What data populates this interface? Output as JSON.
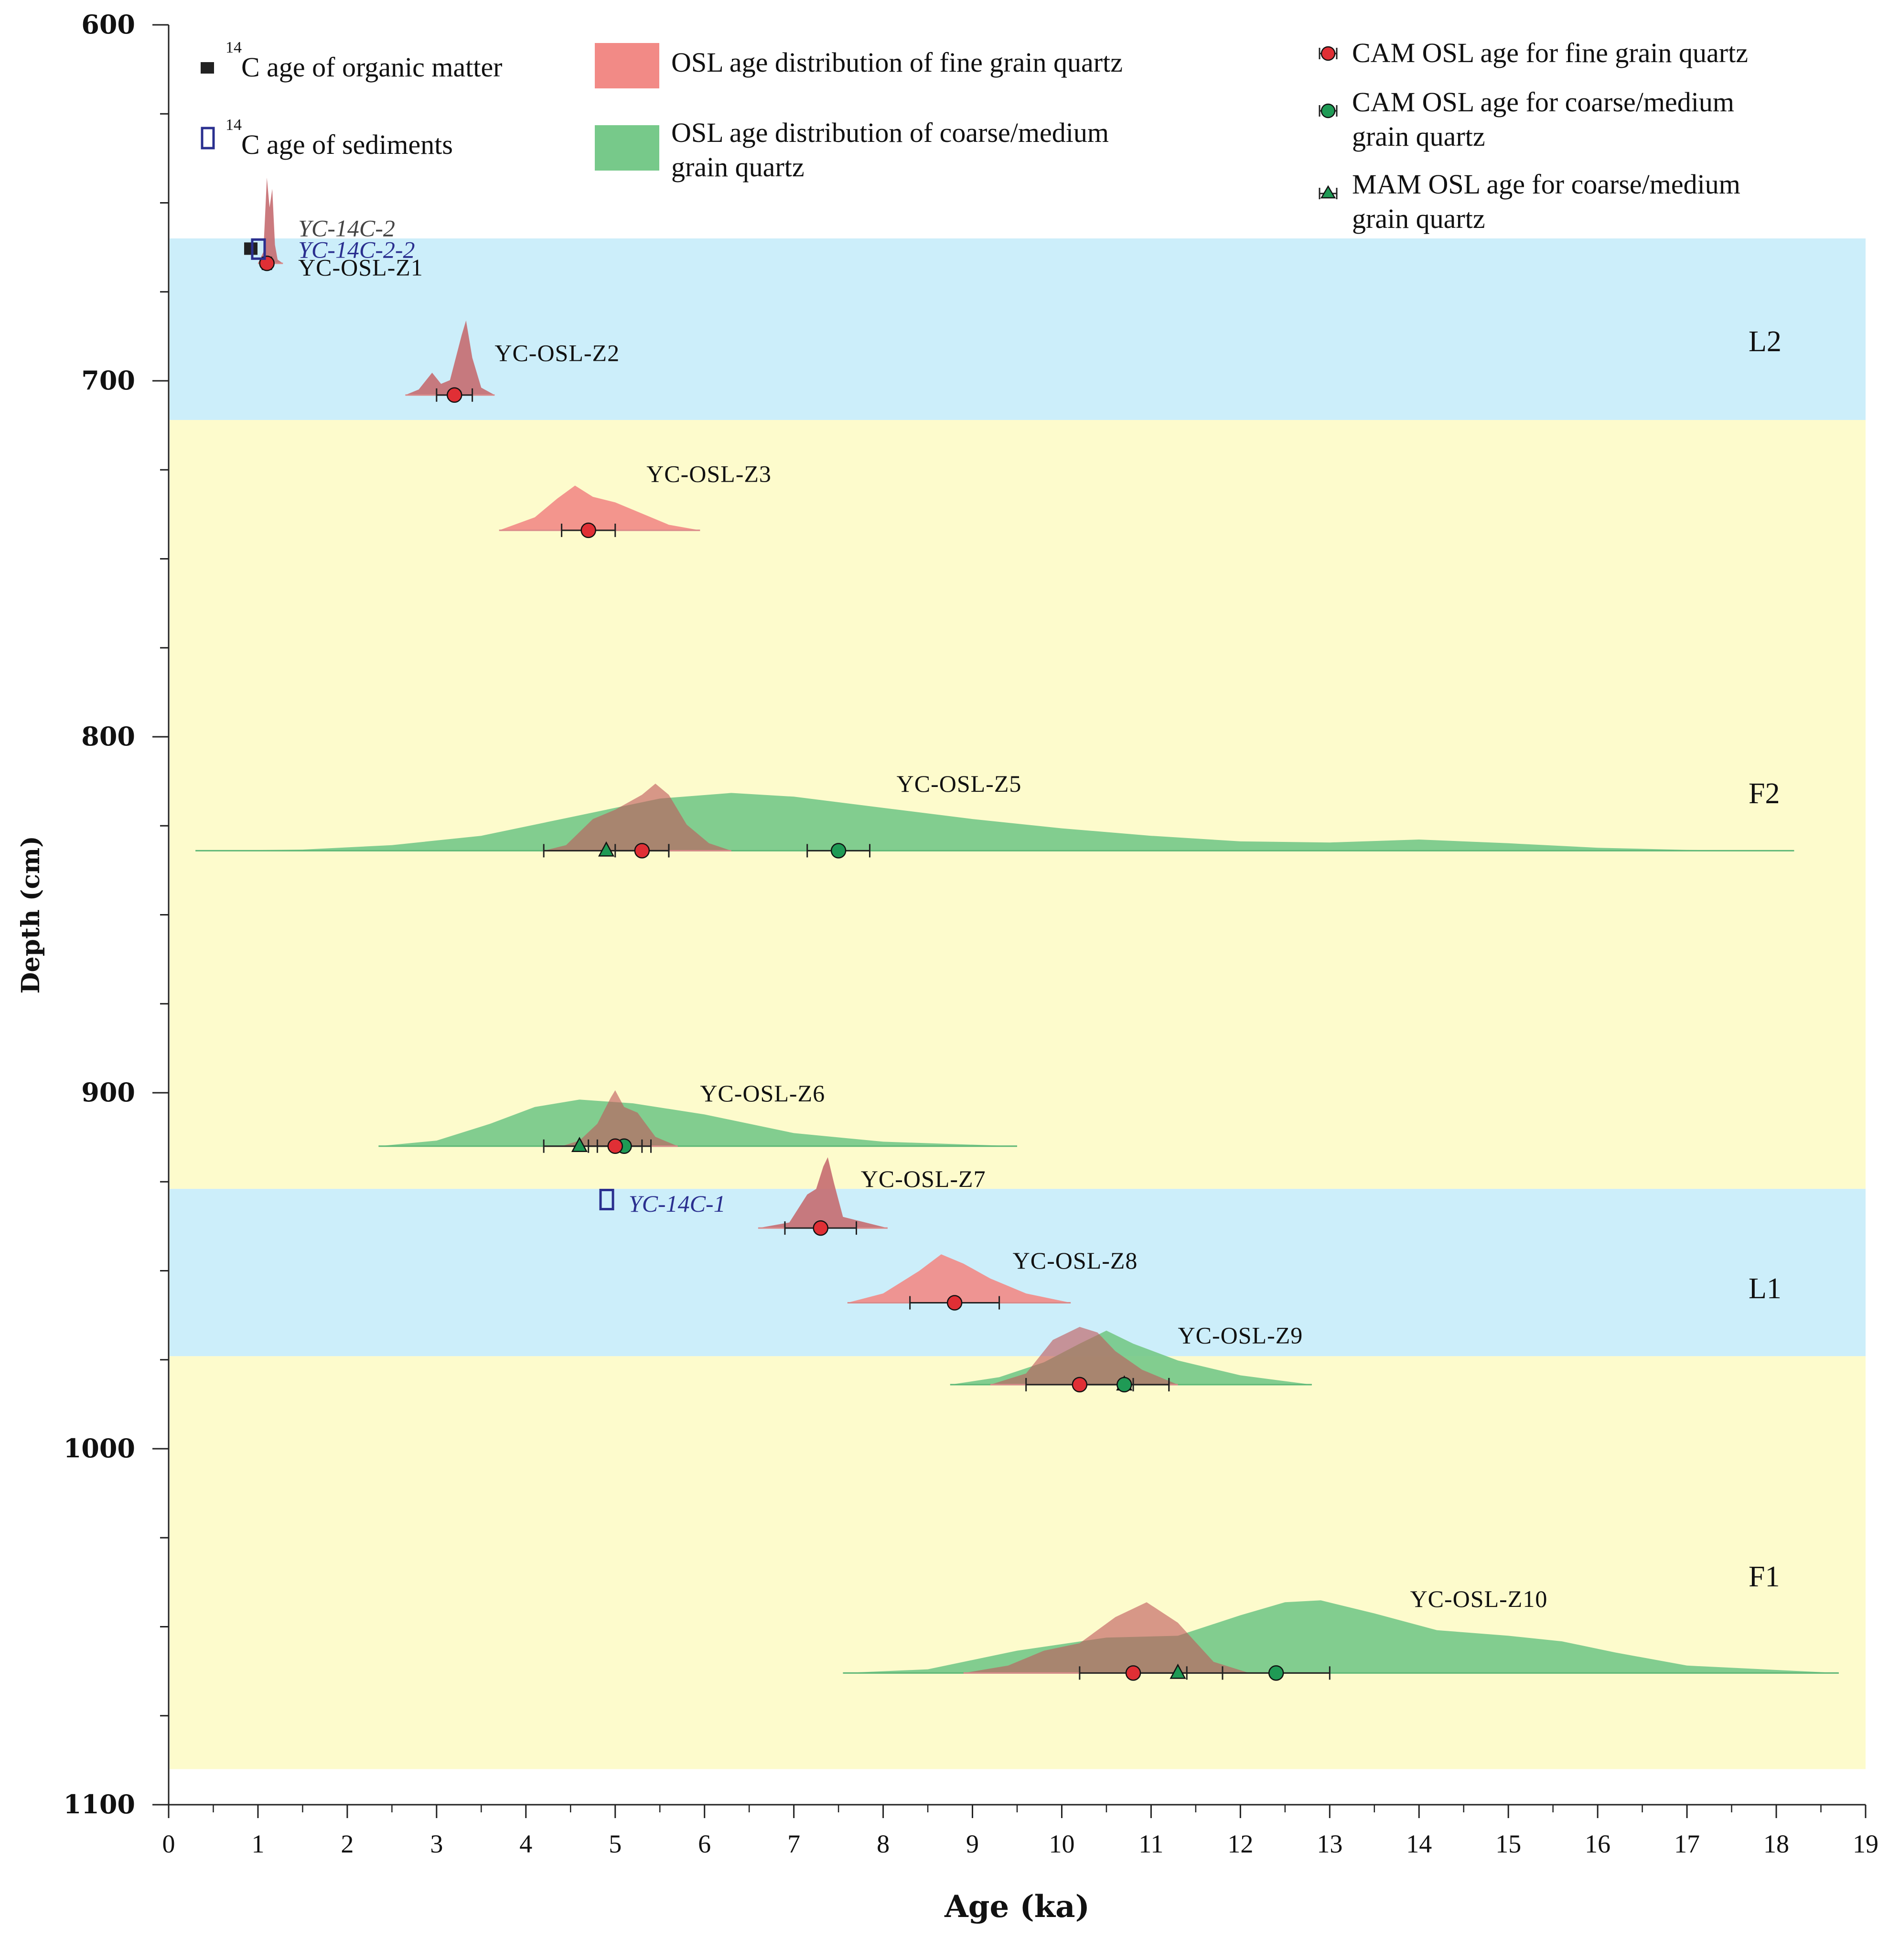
{
  "chart_data": {
    "type": "scatter",
    "title": "",
    "xlabel": "Age (ka)",
    "ylabel": "Depth (cm)",
    "xlim": [
      0,
      19
    ],
    "ylim": [
      1100,
      600
    ],
    "x_ticks": [
      "0",
      "1",
      "2",
      "3",
      "4",
      "5",
      "6",
      "7",
      "8",
      "9",
      "10",
      "11",
      "12",
      "13",
      "14",
      "15",
      "16",
      "17",
      "18",
      "19"
    ],
    "y_ticks": [
      "600",
      "700",
      "800",
      "900",
      "1000",
      "1100"
    ],
    "colors": {
      "band_blue": "#cceefa",
      "band_yellow": "#fdfbcc",
      "fine": "#f28a86",
      "fine_overlap": "#c56b70",
      "coarse": "#77c98a",
      "marker_red": "#e02f35",
      "marker_green": "#1f9a55",
      "c14_blue": "#2a2f8f",
      "text": "#111111"
    },
    "zones": [
      {
        "label": "L2",
        "depth_from": 660,
        "depth_to": 711,
        "color": "#cceefa",
        "label_depth": 689
      },
      {
        "label": "F2",
        "depth_from": 711,
        "depth_to": 927,
        "color": "#fdfbcc",
        "label_depth": 816
      },
      {
        "label": "L1",
        "depth_from": 927,
        "depth_to": 974,
        "color": "#cceefa",
        "label_depth": 955
      },
      {
        "label": "F1",
        "depth_from": 974,
        "depth_to": 1090,
        "color": "#fdfbcc",
        "label_depth": 1036
      }
    ],
    "legend": [
      {
        "marker": "black-square",
        "sup": "14",
        "text": "C age of organic matter"
      },
      {
        "marker": "open-blue-square",
        "sup": "14",
        "text": "C age of sediments"
      },
      {
        "marker": "red-area",
        "text": "OSL  age  distribution  of  fine  grain  quartz"
      },
      {
        "marker": "green-area",
        "text_lines": [
          "OSL  age  distribution  of  coarse/medium",
          "grain  quartz"
        ]
      },
      {
        "marker": "red-circle",
        "text": "CAM OSL age for fine  grain  quartz"
      },
      {
        "marker": "green-circle",
        "text_lines": [
          "CAM OSL age for coarse/medium",
          "grain  quartz"
        ]
      },
      {
        "marker": "green-triangle",
        "text_lines": [
          "MAM OSL age for coarse/medium",
          "grain  quartz"
        ]
      }
    ],
    "c14_ages": [
      {
        "label": "YC-14C-2",
        "type": "organic",
        "age": 0.92,
        "depth": 663
      },
      {
        "label": "YC-14C-2-2",
        "type": "sediment",
        "age": 1.0,
        "depth": 663
      },
      {
        "label": "YC-14C-1",
        "type": "sediment",
        "age": 4.9,
        "depth": 930
      }
    ],
    "osl_samples": [
      {
        "label": "YC-OSL-Z1",
        "depth": 667,
        "fine_cam": {
          "age": 1.1,
          "err": 0.05
        },
        "fine_dist": [
          [
            1.0,
            0
          ],
          [
            1.06,
            0.3
          ],
          [
            1.1,
            2.3
          ],
          [
            1.13,
            1.5
          ],
          [
            1.16,
            2.0
          ],
          [
            1.19,
            0.5
          ],
          [
            1.22,
            0.1
          ],
          [
            1.28,
            0
          ]
        ]
      },
      {
        "label": "YC-OSL-Z2",
        "depth": 704,
        "fine_cam": {
          "age": 3.2,
          "err": 0.2
        },
        "fine_dist": [
          [
            2.65,
            0
          ],
          [
            2.8,
            0.15
          ],
          [
            2.95,
            0.6
          ],
          [
            3.05,
            0.3
          ],
          [
            3.15,
            0.4
          ],
          [
            3.28,
            1.6
          ],
          [
            3.33,
            2.0
          ],
          [
            3.4,
            1.0
          ],
          [
            3.5,
            0.2
          ],
          [
            3.65,
            0
          ]
        ]
      },
      {
        "label": "YC-OSL-Z3",
        "depth": 742,
        "fine_cam": {
          "age": 4.7,
          "err": 0.3
        },
        "fine_dist": [
          [
            3.7,
            0
          ],
          [
            4.1,
            0.35
          ],
          [
            4.35,
            0.85
          ],
          [
            4.55,
            1.2
          ],
          [
            4.75,
            0.9
          ],
          [
            5.0,
            0.75
          ],
          [
            5.3,
            0.45
          ],
          [
            5.6,
            0.15
          ],
          [
            5.95,
            0
          ]
        ]
      },
      {
        "label": "YC-OSL-Z5",
        "depth": 832,
        "fine_cam": {
          "age": 5.3,
          "err": 0.3
        },
        "coarse_cam": {
          "age": 7.5,
          "err": 0.35
        },
        "coarse_mam": {
          "age": 4.9,
          "err": 0.7
        },
        "fine_dist": [
          [
            4.2,
            0
          ],
          [
            4.45,
            0.15
          ],
          [
            4.75,
            0.85
          ],
          [
            5.0,
            1.1
          ],
          [
            5.3,
            1.5
          ],
          [
            5.45,
            1.8
          ],
          [
            5.6,
            1.5
          ],
          [
            5.8,
            0.7
          ],
          [
            6.05,
            0.2
          ],
          [
            6.3,
            0
          ]
        ],
        "coarse_dist": [
          [
            0.3,
            0
          ],
          [
            1.5,
            0.03
          ],
          [
            2.5,
            0.15
          ],
          [
            3.5,
            0.4
          ],
          [
            4.5,
            0.9
          ],
          [
            5.5,
            1.4
          ],
          [
            6.3,
            1.55
          ],
          [
            7.0,
            1.45
          ],
          [
            8.0,
            1.15
          ],
          [
            9.0,
            0.85
          ],
          [
            10.0,
            0.6
          ],
          [
            11.0,
            0.4
          ],
          [
            12.0,
            0.25
          ],
          [
            13.0,
            0.22
          ],
          [
            14.0,
            0.3
          ],
          [
            15.0,
            0.2
          ],
          [
            16.0,
            0.08
          ],
          [
            17.0,
            0.02
          ],
          [
            18.2,
            0
          ]
        ]
      },
      {
        "label": "YC-OSL-Z6",
        "depth": 915,
        "fine_cam": {
          "age": 5.0,
          "err": 0.3
        },
        "coarse_cam": {
          "age": 5.1,
          "err": 0.3
        },
        "coarse_mam": {
          "age": 4.6,
          "err": 0.4
        },
        "fine_dist": [
          [
            4.4,
            0
          ],
          [
            4.6,
            0.15
          ],
          [
            4.8,
            0.6
          ],
          [
            4.95,
            1.3
          ],
          [
            5.0,
            1.5
          ],
          [
            5.1,
            1.05
          ],
          [
            5.25,
            0.9
          ],
          [
            5.45,
            0.25
          ],
          [
            5.7,
            0
          ]
        ],
        "coarse_dist": [
          [
            2.35,
            0
          ],
          [
            3.0,
            0.15
          ],
          [
            3.6,
            0.6
          ],
          [
            4.1,
            1.05
          ],
          [
            4.6,
            1.25
          ],
          [
            5.2,
            1.15
          ],
          [
            6.0,
            0.85
          ],
          [
            7.0,
            0.35
          ],
          [
            8.0,
            0.12
          ],
          [
            9.5,
            0
          ]
        ]
      },
      {
        "label": "YC-OSL-Z7",
        "depth": 938,
        "fine_cam": {
          "age": 7.3,
          "err": 0.4
        },
        "fine_dist": [
          [
            6.6,
            0
          ],
          [
            6.95,
            0.15
          ],
          [
            7.15,
            0.9
          ],
          [
            7.25,
            1.05
          ],
          [
            7.33,
            1.65
          ],
          [
            7.38,
            1.9
          ],
          [
            7.45,
            1.2
          ],
          [
            7.55,
            0.3
          ],
          [
            8.05,
            0
          ]
        ]
      },
      {
        "label": "YC-OSL-Z8",
        "depth": 959,
        "fine_cam": {
          "age": 8.8,
          "err": 0.5
        },
        "fine_dist": [
          [
            7.6,
            0
          ],
          [
            8.0,
            0.25
          ],
          [
            8.4,
            0.85
          ],
          [
            8.65,
            1.3
          ],
          [
            8.9,
            1.05
          ],
          [
            9.2,
            0.65
          ],
          [
            9.6,
            0.25
          ],
          [
            10.1,
            0
          ]
        ]
      },
      {
        "label": "YC-OSL-Z9",
        "depth": 982,
        "fine_cam": {
          "age": 10.2,
          "err": 0.6
        },
        "coarse_cam": {
          "age": 10.7,
          "err": 0.5
        },
        "coarse_mam": {
          "age": 10.7,
          "err": 0.5
        },
        "fine_dist": [
          [
            9.2,
            0
          ],
          [
            9.6,
            0.3
          ],
          [
            9.9,
            1.2
          ],
          [
            10.2,
            1.55
          ],
          [
            10.4,
            1.4
          ],
          [
            10.6,
            0.9
          ],
          [
            10.9,
            0.4
          ],
          [
            11.3,
            0
          ]
        ],
        "coarse_dist": [
          [
            8.75,
            0
          ],
          [
            9.3,
            0.2
          ],
          [
            9.8,
            0.6
          ],
          [
            10.2,
            1.1
          ],
          [
            10.5,
            1.45
          ],
          [
            10.8,
            1.1
          ],
          [
            11.3,
            0.65
          ],
          [
            12.0,
            0.25
          ],
          [
            12.8,
            0
          ]
        ]
      },
      {
        "label": "YC-OSL-Z10",
        "depth": 1063,
        "fine_cam": {
          "age": 10.8,
          "err": 0.6
        },
        "coarse_cam": {
          "age": 12.4,
          "err": 0.6
        },
        "coarse_mam": {
          "age": 11.3,
          "err": 0.5
        },
        "fine_dist": [
          [
            8.9,
            0
          ],
          [
            9.4,
            0.2
          ],
          [
            9.8,
            0.6
          ],
          [
            10.2,
            0.8
          ],
          [
            10.6,
            1.5
          ],
          [
            10.95,
            1.9
          ],
          [
            11.3,
            1.35
          ],
          [
            11.7,
            0.3
          ],
          [
            12.1,
            0
          ]
        ],
        "coarse_dist": [
          [
            7.55,
            0
          ],
          [
            8.5,
            0.1
          ],
          [
            9.5,
            0.6
          ],
          [
            10.5,
            0.95
          ],
          [
            11.3,
            1.0
          ],
          [
            12.0,
            1.55
          ],
          [
            12.5,
            1.9
          ],
          [
            12.9,
            1.95
          ],
          [
            13.5,
            1.6
          ],
          [
            14.2,
            1.15
          ],
          [
            15.0,
            1.0
          ],
          [
            15.6,
            0.85
          ],
          [
            16.2,
            0.55
          ],
          [
            17.0,
            0.2
          ],
          [
            18.7,
            0
          ]
        ]
      }
    ],
    "sample_label_positions": [
      {
        "label": "YC-OSL-Z1",
        "age": 1.45,
        "depth": 668
      },
      {
        "label": "YC-OSL-Z2",
        "age": 3.65,
        "depth": 692
      },
      {
        "label": "YC-OSL-Z3",
        "age": 5.35,
        "depth": 726
      },
      {
        "label": "YC-OSL-Z5",
        "age": 8.15,
        "depth": 813
      },
      {
        "label": "YC-OSL-Z6",
        "age": 5.95,
        "depth": 900
      },
      {
        "label": "YC-OSL-Z7",
        "age": 7.75,
        "depth": 924
      },
      {
        "label": "YC-OSL-Z8",
        "age": 9.45,
        "depth": 947
      },
      {
        "label": "YC-OSL-Z9",
        "age": 11.3,
        "depth": 968
      },
      {
        "label": "YC-OSL-Z10",
        "age": 13.9,
        "depth": 1042
      }
    ],
    "c14_label_positions": [
      {
        "label": "YC-14C-2",
        "age": 1.45,
        "depth": 657
      },
      {
        "label": "YC-14C-2-2",
        "age": 1.45,
        "depth": 663
      },
      {
        "label": "YC-14C-1",
        "age": 5.15,
        "depth": 931
      }
    ]
  }
}
